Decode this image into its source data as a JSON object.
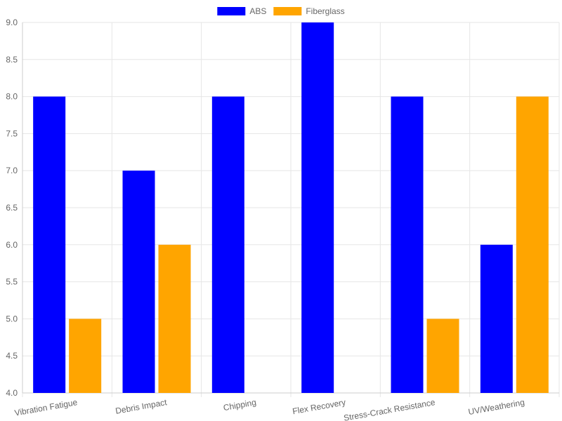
{
  "chart_data": {
    "type": "bar",
    "categories": [
      "Vibration Fatigue",
      "Debris Impact",
      "Chipping",
      "Flex Recovery",
      "Stress-Crack Resistance",
      "UV/Weathering"
    ],
    "series": [
      {
        "name": "ABS",
        "color": "#0000ff",
        "values": [
          8,
          7,
          8,
          9,
          8,
          6
        ]
      },
      {
        "name": "Fiberglass",
        "color": "#ffa500",
        "values": [
          5,
          6,
          4,
          4,
          5,
          8
        ]
      }
    ],
    "ylim": [
      4,
      9
    ],
    "y_ticks": [
      "4.0",
      "4.5",
      "5.0",
      "5.5",
      "6.0",
      "6.5",
      "7.0",
      "7.5",
      "8.0",
      "8.5",
      "9.0"
    ],
    "title": "",
    "xlabel": "",
    "ylabel": "",
    "grid": true,
    "legend_position": "top-center"
  }
}
